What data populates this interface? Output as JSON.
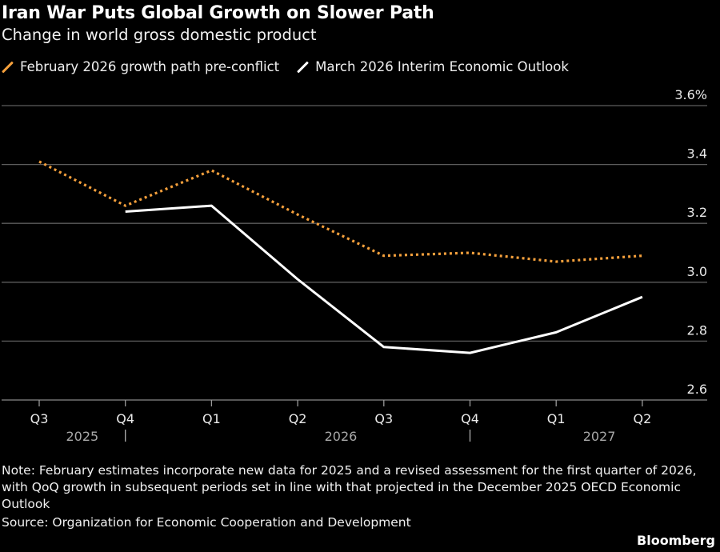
{
  "header": {
    "title": "Iran War Puts Global Growth on Slower Path",
    "subtitle": "Change in world gross domestic product"
  },
  "legend": [
    {
      "label": "February 2026 growth path pre-conflict",
      "color": "#F5A03C",
      "icon": "diagonal-line-icon"
    },
    {
      "label": "March 2026 Interim Economic Outlook",
      "color": "#FFFFFF",
      "icon": "diagonal-line-icon"
    }
  ],
  "chart_data": {
    "type": "line",
    "title": "Iran War Puts Global Growth on Slower Path",
    "subtitle": "Change in world gross domestic product",
    "xlabel": "",
    "ylabel": "",
    "categories": [
      "Q3",
      "Q4",
      "Q1",
      "Q2",
      "Q3",
      "Q4",
      "Q1",
      "Q2"
    ],
    "year_labels": [
      {
        "label": "2025",
        "between": [
          0,
          1
        ]
      },
      {
        "label": "2026",
        "between": [
          2,
          5
        ]
      },
      {
        "label": "2027",
        "between": [
          6,
          7
        ]
      }
    ],
    "year_dividers_after_index": [
      0,
      4
    ],
    "x_full": [
      "Q3 2025",
      "Q4 2025",
      "Q1 2026",
      "Q2 2026",
      "Q3 2026",
      "Q4 2026",
      "Q1 2027",
      "Q2 2027"
    ],
    "series": [
      {
        "name": "February 2026 growth path pre-conflict",
        "color": "#F5A03C",
        "style": "dotted",
        "values": [
          3.41,
          3.26,
          3.38,
          3.23,
          3.09,
          3.1,
          3.07,
          3.09
        ]
      },
      {
        "name": "March 2026 Interim Economic Outlook",
        "color": "#FFFFFF",
        "style": "solid",
        "values": [
          null,
          3.24,
          3.26,
          3.01,
          2.78,
          2.76,
          2.83,
          2.95
        ]
      }
    ],
    "yticks": [
      2.6,
      2.8,
      3.0,
      3.2,
      3.4,
      3.6
    ],
    "ytick_labels": [
      "2.6",
      "2.8",
      "3.0",
      "3.2",
      "3.4",
      "3.6%"
    ],
    "ylim": [
      2.6,
      3.6
    ],
    "grid": true,
    "y_axis_side": "right",
    "legend_position": "top-left"
  },
  "footer": {
    "note": "Note: February estimates incorporate new data for 2025 and a revised assessment for the first quarter of 2026, with QoQ growth in subsequent periods set in line with that projected in the December 2025 OECD Economic Outlook",
    "source": "Source: Organization for Economic Cooperation and Development",
    "brand": "Bloomberg"
  }
}
